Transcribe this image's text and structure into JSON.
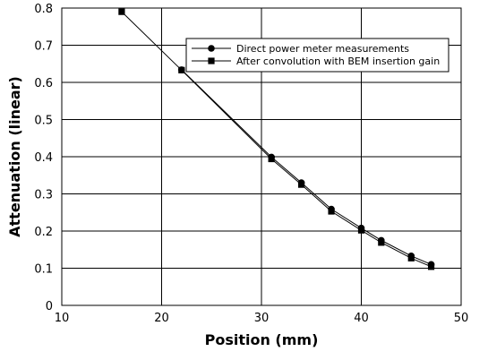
{
  "chart_data": {
    "type": "line",
    "title": "",
    "xlabel": "Position (mm)",
    "ylabel": "Attenuation (linear)",
    "xlim": [
      10,
      50
    ],
    "ylim": [
      0,
      0.8
    ],
    "xticks": [
      10,
      20,
      30,
      40,
      50
    ],
    "yticks": [
      0,
      0.1,
      0.2,
      0.3,
      0.4,
      0.5,
      0.6,
      0.7,
      0.8
    ],
    "xtick_labels": [
      "10",
      "20",
      "30",
      "40",
      "50"
    ],
    "ytick_labels": [
      "0",
      "0.1",
      "0.2",
      "0.3",
      "0.4",
      "0.5",
      "0.6",
      "0.7",
      "0.8"
    ],
    "grid": true,
    "legend_position": "top-right",
    "series": [
      {
        "name": "Direct power meter measurements",
        "marker": "circle",
        "color": "#000000",
        "x": [
          22,
          31,
          34,
          37,
          40,
          42,
          45,
          47
        ],
        "y": [
          0.634,
          0.399,
          0.33,
          0.259,
          0.208,
          0.175,
          0.133,
          0.11
        ]
      },
      {
        "name": "After convolution with BEM insertion gain",
        "marker": "square",
        "color": "#000000",
        "x": [
          16,
          22,
          31,
          34,
          37,
          40,
          42,
          45,
          47
        ],
        "y": [
          0.79,
          0.633,
          0.394,
          0.325,
          0.253,
          0.202,
          0.169,
          0.127,
          0.104
        ]
      }
    ]
  }
}
